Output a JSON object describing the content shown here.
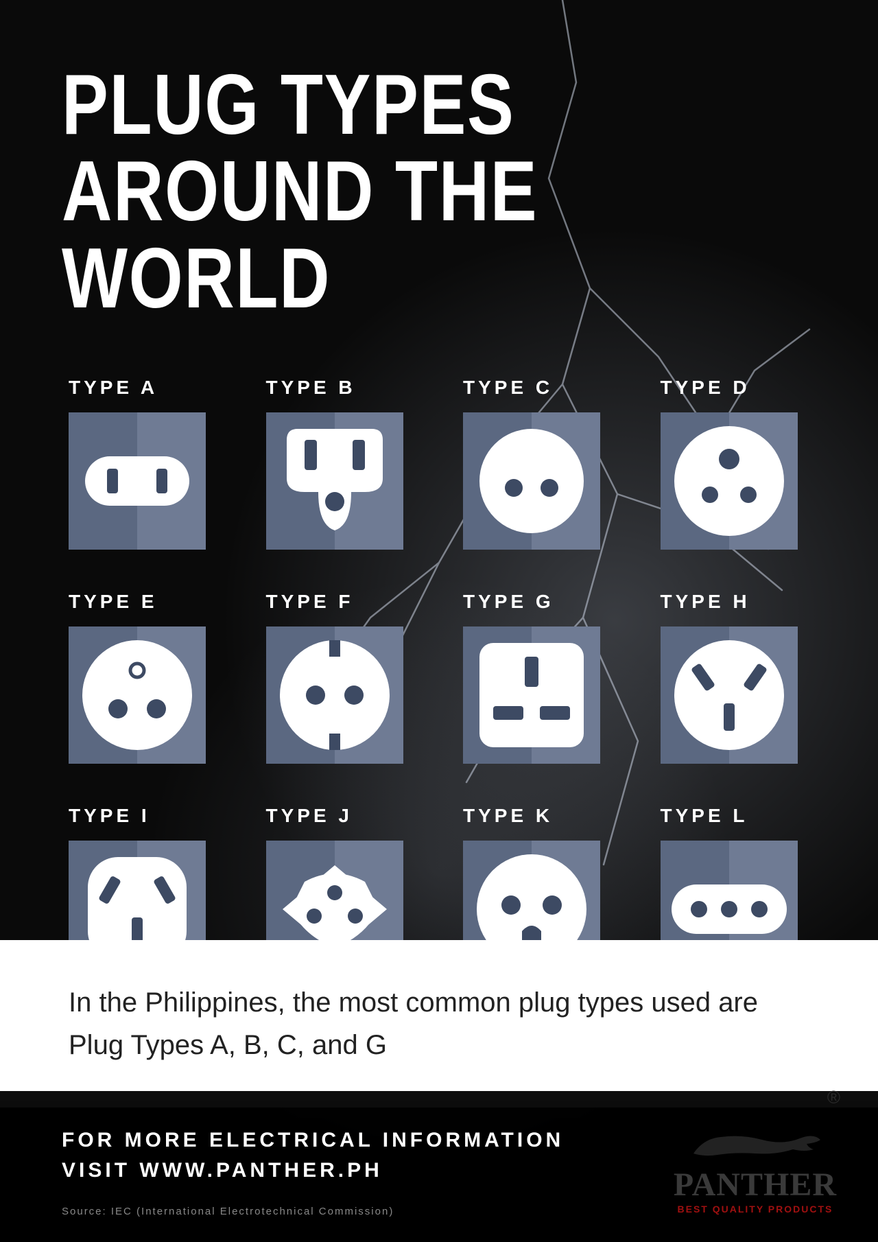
{
  "title_line1": "PLUG TYPES",
  "title_line2": "AROUND THE WORLD",
  "grid_columns": 4,
  "tile_bg_left": "#5b6881",
  "tile_bg_right": "#6f7b94",
  "plug_white": "#ffffff",
  "plug_dark": "#3d4a63",
  "label_color": "#ffffff",
  "label_fontsize": 28,
  "plugs": [
    {
      "type": "A",
      "label": "TYPE A"
    },
    {
      "type": "B",
      "label": "TYPE B"
    },
    {
      "type": "C",
      "label": "TYPE C"
    },
    {
      "type": "D",
      "label": "TYPE D"
    },
    {
      "type": "E",
      "label": "TYPE E"
    },
    {
      "type": "F",
      "label": "TYPE F"
    },
    {
      "type": "G",
      "label": "TYPE G"
    },
    {
      "type": "H",
      "label": "TYPE H"
    },
    {
      "type": "I",
      "label": "TYPE I"
    },
    {
      "type": "J",
      "label": "TYPE J"
    },
    {
      "type": "K",
      "label": "TYPE K"
    },
    {
      "type": "L",
      "label": "TYPE L"
    }
  ],
  "band_text": "In the Philippines, the most common plug types used are Plug Types A, B, C, and G",
  "band_bg": "#ffffff",
  "band_text_color": "#222222",
  "band_fontsize": 40,
  "footer_line1": "FOR MORE ELECTRICAL INFORMATION",
  "footer_line2": "VISIT WWW.PANTHER.PH",
  "footer_source": "Source: IEC (International Electrotechnical Commission)",
  "brand_name": "PANTHER",
  "brand_tag": "BEST QUALITY PRODUCTS",
  "brand_reg": "®",
  "background_color": "#0a0a0a"
}
